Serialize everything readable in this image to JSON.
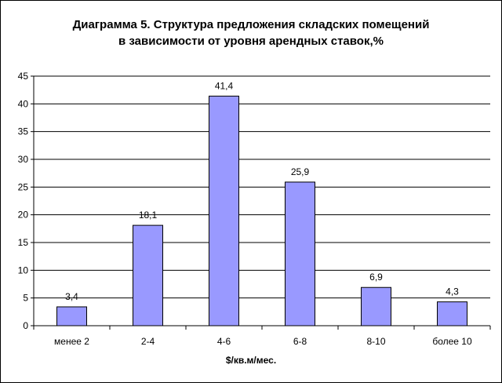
{
  "chart_data": {
    "type": "bar",
    "title_lines": [
      "Диаграмма 5. Структура предложения складских помещений",
      "в зависимости от уровня арендных ставок,%"
    ],
    "xlabel": "$/кв.м/мес.",
    "ylabel": "",
    "ylim": [
      0,
      45
    ],
    "yticks": [
      "0",
      "5",
      "10",
      "15",
      "20",
      "25",
      "30",
      "35",
      "40",
      "45"
    ],
    "categories": [
      "менее 2",
      "2-4",
      "4-6",
      "6-8",
      "8-10",
      "более 10"
    ],
    "values": [
      3.4,
      18.1,
      41.4,
      25.9,
      6.9,
      4.3
    ],
    "value_labels": [
      "3,4",
      "18,1",
      "41,4",
      "25,9",
      "6,9",
      "4,3"
    ],
    "bar_color": "#9999FF",
    "grid": true,
    "legend": "none"
  }
}
